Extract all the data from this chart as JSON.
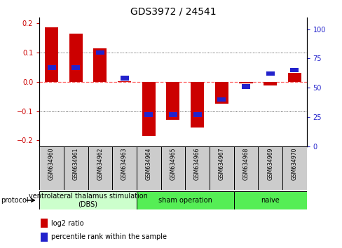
{
  "title": "GDS3972 / 24541",
  "samples": [
    "GSM634960",
    "GSM634961",
    "GSM634962",
    "GSM634963",
    "GSM634964",
    "GSM634965",
    "GSM634966",
    "GSM634967",
    "GSM634968",
    "GSM634969",
    "GSM634970"
  ],
  "log2_ratio": [
    0.185,
    0.165,
    0.115,
    0.003,
    -0.185,
    -0.13,
    -0.155,
    -0.075,
    -0.005,
    -0.013,
    0.03
  ],
  "percentile_rank": [
    62,
    62,
    75,
    53,
    22,
    22,
    22,
    35,
    46,
    57,
    60
  ],
  "ylim": [
    -0.22,
    0.22
  ],
  "ylim_display": [
    -0.2,
    0.2
  ],
  "y2lim": [
    0,
    110
  ],
  "y2lim_display": [
    0,
    100
  ],
  "yticks": [
    -0.2,
    -0.1,
    0.0,
    0.1,
    0.2
  ],
  "y2ticks": [
    0,
    25,
    50,
    75,
    100
  ],
  "bar_color_red": "#cc0000",
  "bar_color_blue": "#2222cc",
  "zero_line_color": "#ff6666",
  "grid_color": "#333333",
  "protocol_groups": [
    {
      "label": "ventrolateral thalamus stimulation\n(DBS)",
      "start": 0,
      "end": 3,
      "color": "#ccffcc"
    },
    {
      "label": "sham operation",
      "start": 4,
      "end": 7,
      "color": "#55ee55"
    },
    {
      "label": "naive",
      "start": 8,
      "end": 10,
      "color": "#55ee55"
    }
  ],
  "protocol_label": "protocol",
  "legend_items": [
    "log2 ratio",
    "percentile rank within the sample"
  ],
  "bar_width": 0.55,
  "blue_bar_width": 0.35,
  "blue_bar_height": 0.016,
  "bg_color": "#ffffff",
  "label_box_color": "#cccccc",
  "title_fontsize": 10,
  "tick_fontsize": 7,
  "sample_fontsize": 5.5,
  "proto_fontsize": 7,
  "legend_fontsize": 7
}
